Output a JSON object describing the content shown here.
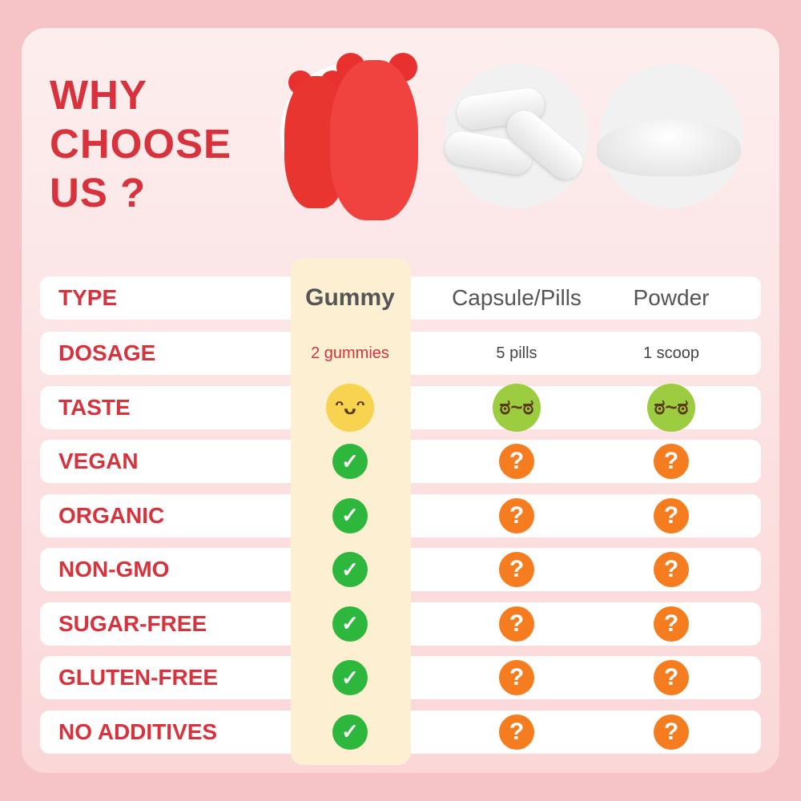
{
  "title": {
    "line1": "WHY",
    "line2": "CHOOSE",
    "line3": "US ?"
  },
  "colors": {
    "accent": "#d8323c",
    "check": "#2db83d",
    "question": "#f57c1f",
    "highlight": "#fdf0d2"
  },
  "header": {
    "label": "TYPE",
    "columns": [
      "Gummy",
      "Capsule/Pills",
      "Powder"
    ]
  },
  "rows": [
    {
      "label": "DOSAGE",
      "values": [
        "2 gummies",
        "5 pills",
        "1 scoop"
      ]
    },
    {
      "label": "TASTE",
      "icons": [
        "yum-face-icon",
        "sick-face-icon",
        "sick-face-icon"
      ]
    },
    {
      "label": "VEGAN",
      "icons": [
        "check-icon",
        "question-icon",
        "question-icon"
      ]
    },
    {
      "label": "ORGANIC",
      "icons": [
        "check-icon",
        "question-icon",
        "question-icon"
      ]
    },
    {
      "label": "NON-GMO",
      "icons": [
        "check-icon",
        "question-icon",
        "question-icon"
      ]
    },
    {
      "label": "SUGAR-FREE",
      "icons": [
        "check-icon",
        "question-icon",
        "question-icon"
      ]
    },
    {
      "label": "GLUTEN-FREE",
      "icons": [
        "check-icon",
        "question-icon",
        "question-icon"
      ]
    },
    {
      "label": "NO ADDITIVES",
      "icons": [
        "check-icon",
        "question-icon",
        "question-icon"
      ]
    }
  ],
  "glyphs": {
    "check": "✓",
    "question": "?",
    "yum": "ᵔᴗᵔ",
    "sick": "ಠ~ಠ"
  }
}
